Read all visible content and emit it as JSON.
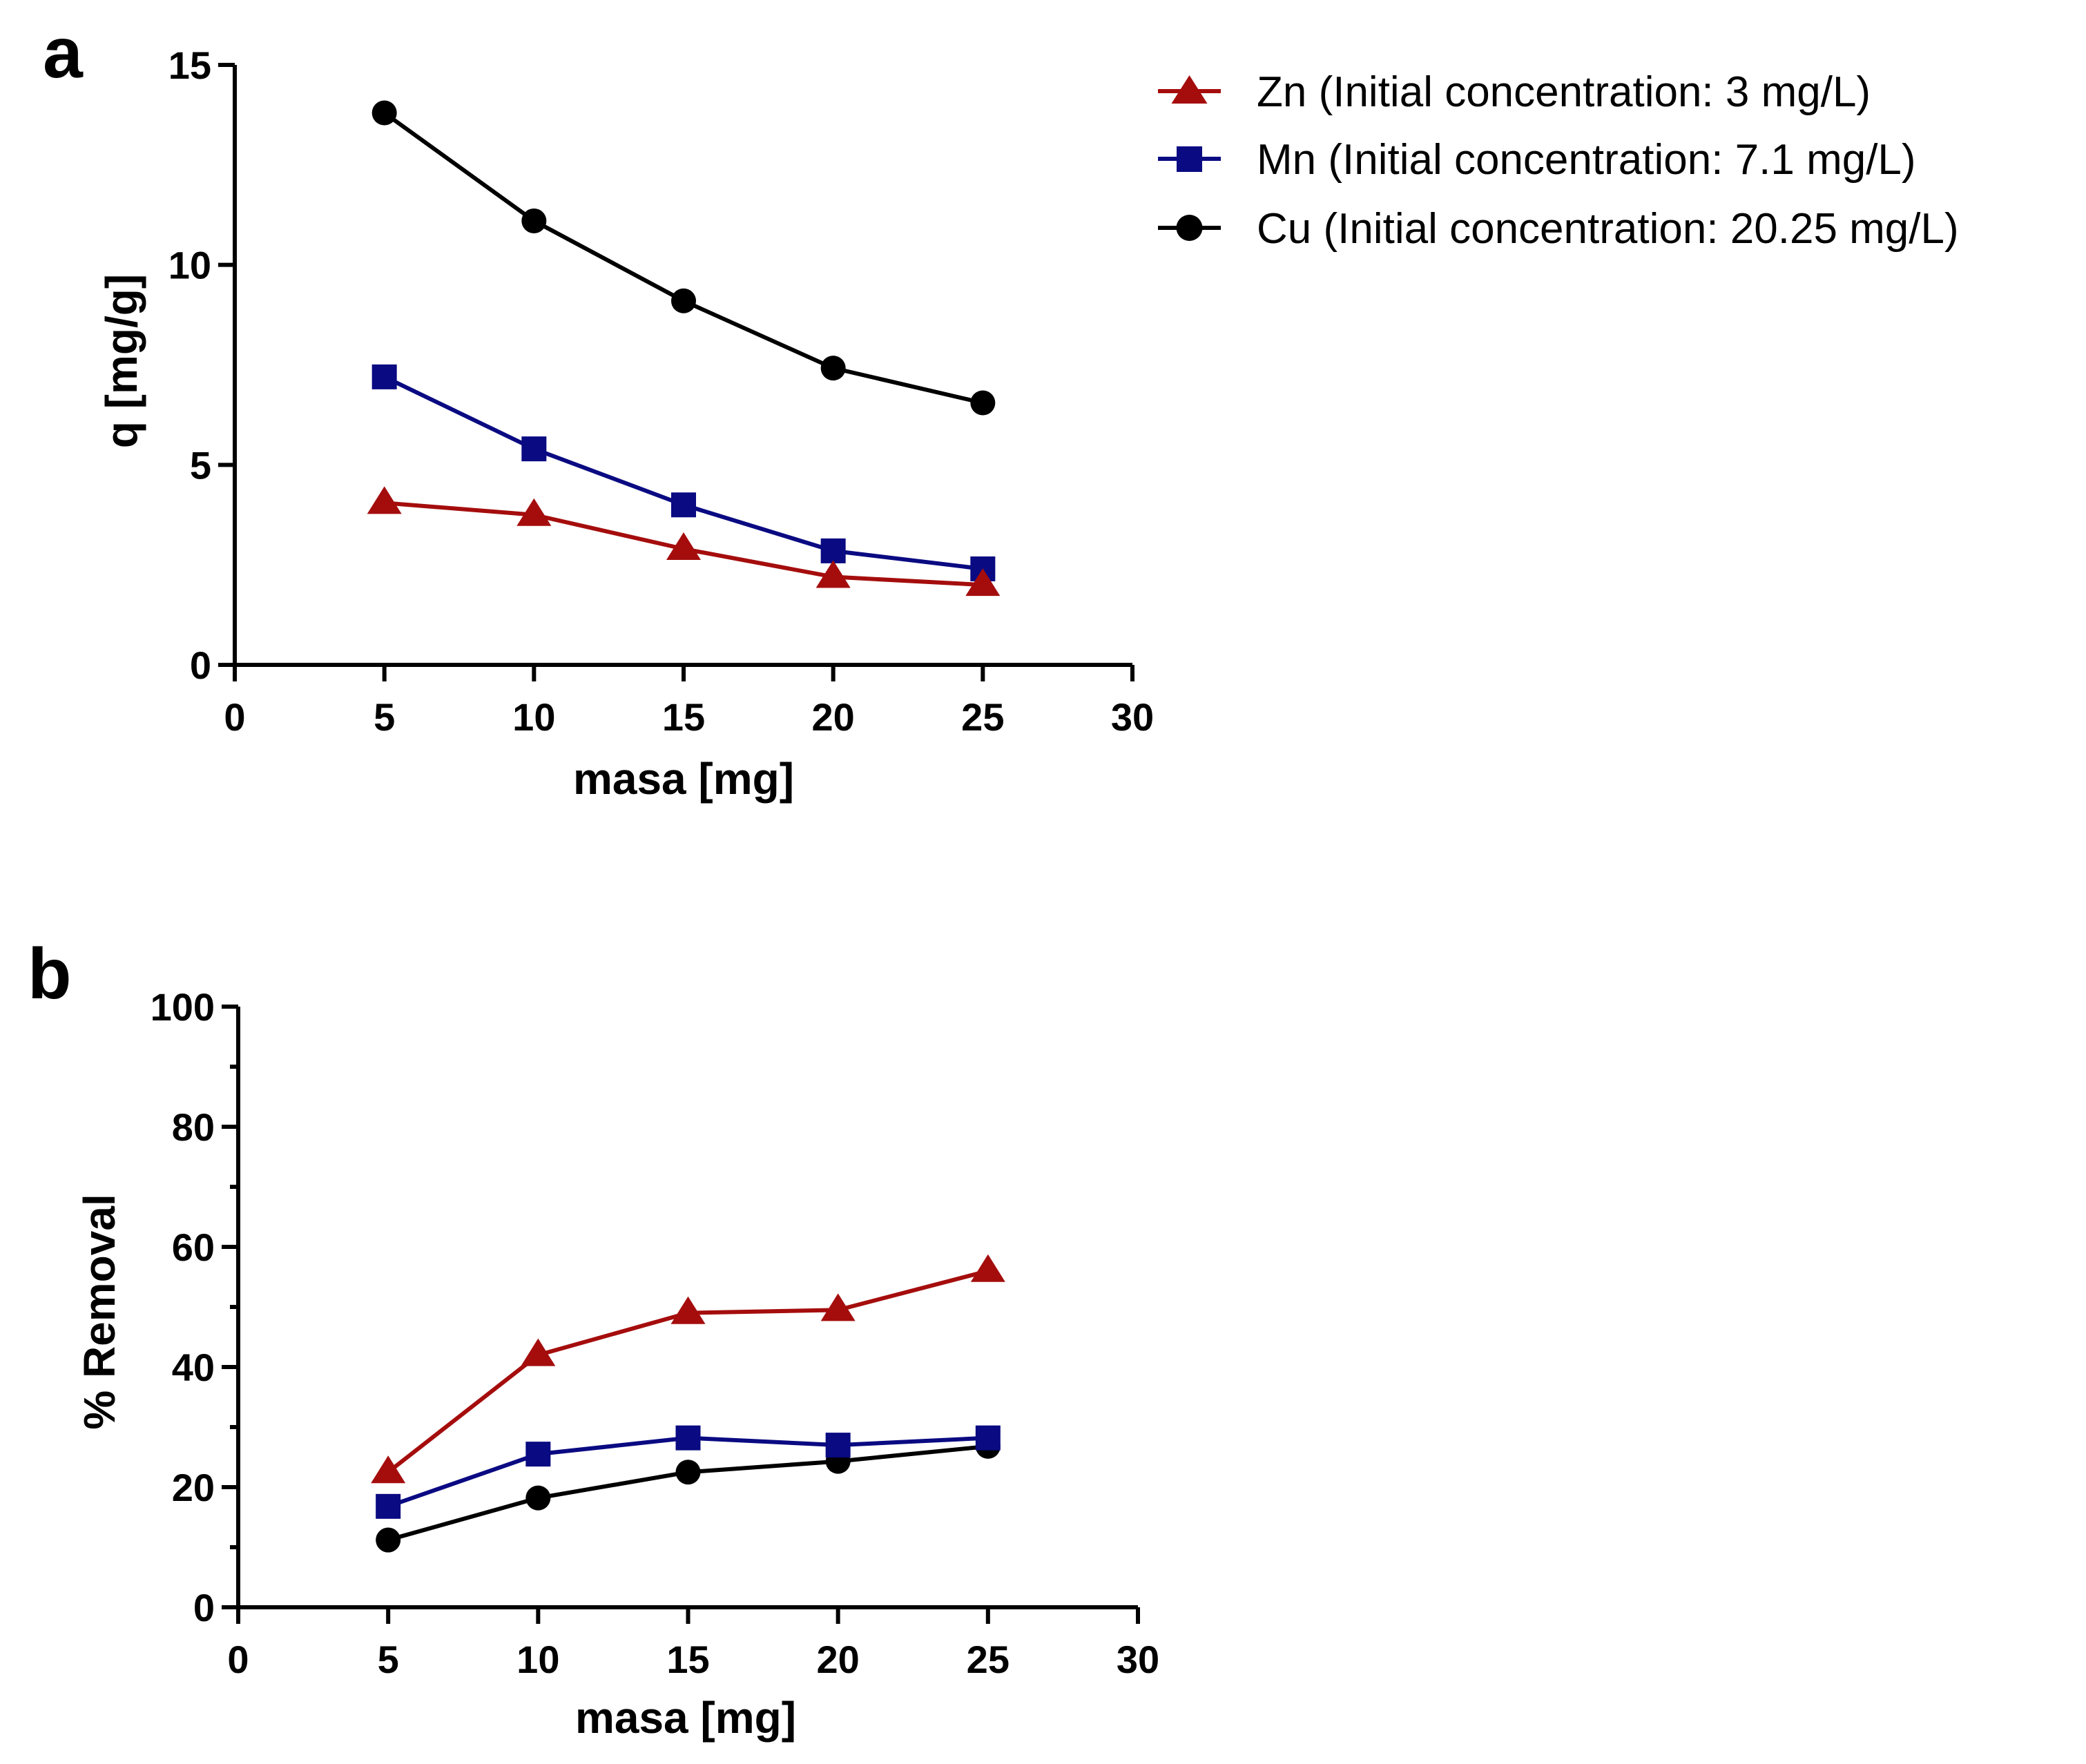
{
  "legend": {
    "entries": [
      {
        "series": "Zn",
        "label": "Zn (Initial concentration: 3 mg/L)",
        "marker": "triangle",
        "color": "#a50d0d"
      },
      {
        "series": "Mn",
        "label": "Mn (Initial concentration: 7.1 mg/L)",
        "marker": "square",
        "color": "#0a0a82"
      },
      {
        "series": "Cu",
        "label": "Cu (Initial concentration: 20.25 mg/L)",
        "marker": "circle",
        "color": "#000000"
      }
    ]
  },
  "chart_data": [
    {
      "panel": "a",
      "type": "line",
      "xlabel": "masa [mg]",
      "ylabel": "q [mg/g]",
      "xlim": [
        0,
        30
      ],
      "ylim": [
        0,
        15
      ],
      "xticks": [
        0,
        5,
        10,
        15,
        20,
        25,
        30
      ],
      "yticks": [
        0,
        5,
        10,
        15
      ],
      "grid": false,
      "legend_position": "top-right",
      "x": [
        5,
        10,
        15,
        20,
        25
      ],
      "series": [
        {
          "name": "Zn",
          "marker": "triangle",
          "color": "#a50d0d",
          "values": [
            4.05,
            3.75,
            2.9,
            2.2,
            2.0
          ]
        },
        {
          "name": "Mn",
          "marker": "square",
          "color": "#0a0a82",
          "values": [
            7.2,
            5.4,
            4.0,
            2.85,
            2.4
          ]
        },
        {
          "name": "Cu",
          "marker": "circle",
          "color": "#000000",
          "values": [
            13.8,
            11.1,
            9.1,
            7.42,
            6.55
          ]
        }
      ]
    },
    {
      "panel": "b",
      "type": "line",
      "xlabel": "masa [mg]",
      "ylabel": "% Removal",
      "xlim": [
        0,
        30
      ],
      "ylim": [
        0,
        100
      ],
      "xticks": [
        0,
        5,
        10,
        15,
        20,
        25,
        30
      ],
      "yticks": [
        0,
        20,
        40,
        60,
        80,
        100
      ],
      "yminor": [
        10,
        30,
        50,
        70,
        90
      ],
      "grid": false,
      "x": [
        5,
        10,
        15,
        20,
        25
      ],
      "series": [
        {
          "name": "Zn",
          "marker": "triangle",
          "color": "#a50d0d",
          "values": [
            22.5,
            42.0,
            49.0,
            49.5,
            56.0
          ]
        },
        {
          "name": "Mn",
          "marker": "square",
          "color": "#0a0a82",
          "values": [
            16.8,
            25.5,
            28.2,
            27.0,
            28.2
          ]
        },
        {
          "name": "Cu",
          "marker": "circle",
          "color": "#000000",
          "values": [
            11.2,
            18.2,
            22.5,
            24.3,
            26.8
          ]
        }
      ]
    }
  ]
}
